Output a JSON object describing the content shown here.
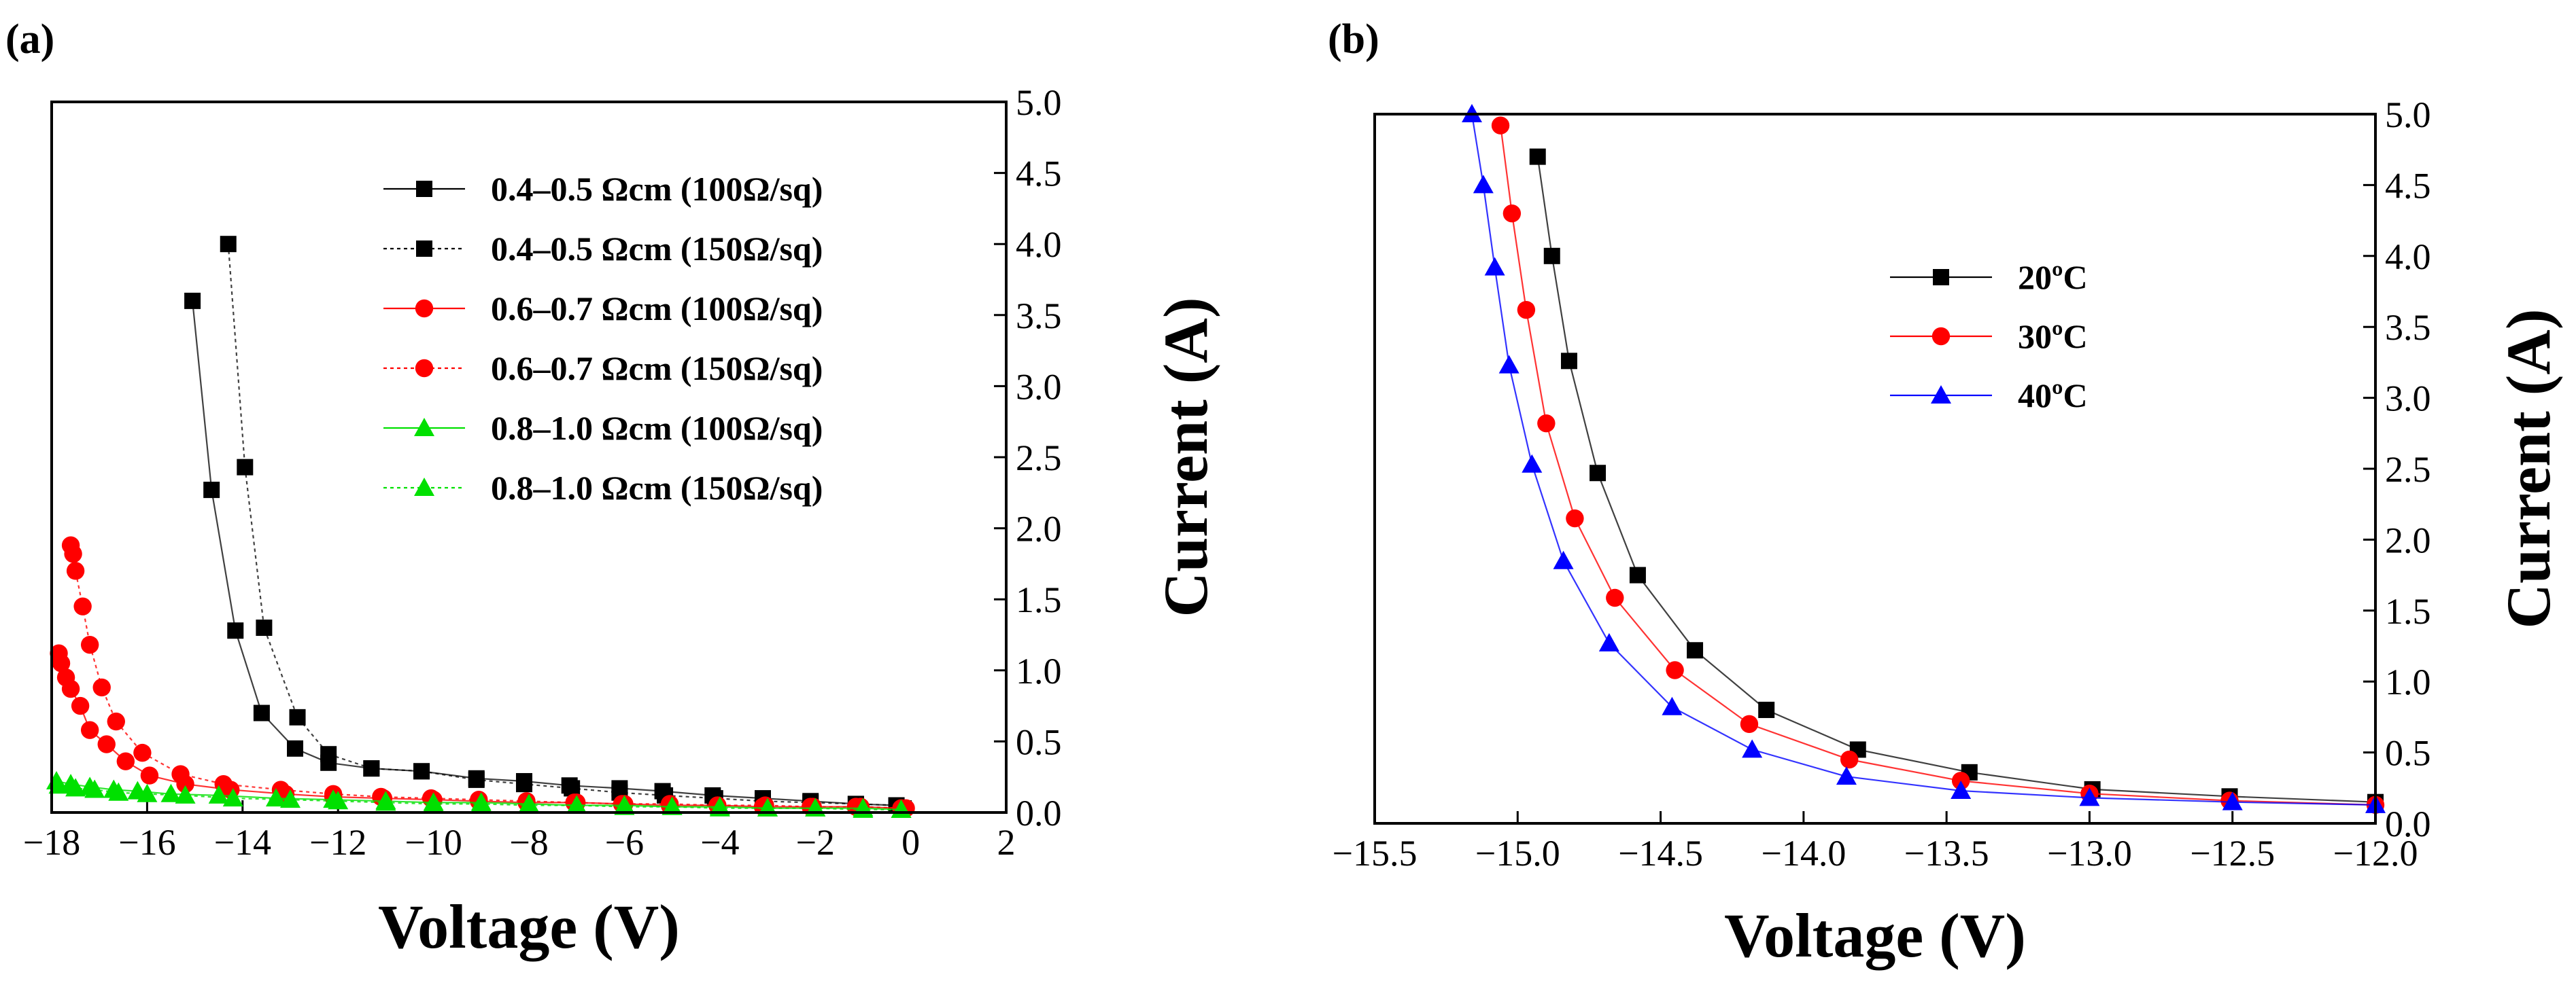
{
  "figure": {
    "panels": [
      "(a)",
      "(b)"
    ]
  },
  "colors": {
    "black": "#000000",
    "red": "#ff0000",
    "green": "#00e000",
    "blue": "#0000ff"
  },
  "chart_data": [
    {
      "type": "line",
      "panel_label": "(a)",
      "xlabel": "Voltage (V)",
      "ylabel": "Current (A)",
      "xlim": [
        -18,
        2
      ],
      "ylim": [
        0,
        5
      ],
      "xticks": [
        -18,
        -16,
        -14,
        -12,
        -10,
        -8,
        -6,
        -4,
        -2,
        0,
        2
      ],
      "xtick_labels": [
        "−18",
        "−16",
        "−14",
        "−12",
        "−10",
        "−8",
        "−6",
        "−4",
        "−2",
        "0",
        "2"
      ],
      "yticks": [
        0,
        0.5,
        1,
        1.5,
        2,
        2.5,
        3,
        3.5,
        4,
        4.5,
        5
      ],
      "ytick_labels": [
        "0.0",
        "0.5",
        "1.0",
        "1.5",
        "2.0",
        "2.5",
        "3.0",
        "3.5",
        "4.0",
        "4.5",
        "5.0"
      ],
      "y_axis_side": "right",
      "legend_position": "top-right",
      "series": [
        {
          "name": "0.4–0.5 Ωcm (100Ω/sq)",
          "color": "#000000",
          "marker": "square",
          "dash": "solid",
          "x": [
            -15.05,
            -14.65,
            -14.15,
            -13.6,
            -12.9,
            -12.2,
            -11.3,
            -10.25,
            -9.1,
            -8.1,
            -7.15,
            -6.1,
            -5.2,
            -4.15,
            -3.1,
            -2.1,
            -1.15,
            -0.3
          ],
          "y": [
            3.6,
            2.27,
            1.28,
            0.7,
            0.45,
            0.35,
            0.31,
            0.29,
            0.24,
            0.22,
            0.19,
            0.17,
            0.15,
            0.12,
            0.1,
            0.08,
            0.06,
            0.05
          ]
        },
        {
          "name": "0.4–0.5 Ωcm (150Ω/sq)",
          "color": "#000000",
          "marker": "square",
          "dash": "dotted",
          "x": [
            -14.3,
            -13.95,
            -13.55,
            -12.85,
            -12.2,
            -11.3,
            -10.25,
            -9.1,
            -8.1,
            -7.1,
            -6.1,
            -5.15,
            -4.1,
            -3.1,
            -2.1,
            -1.15,
            -0.3
          ],
          "y": [
            4.0,
            2.43,
            1.3,
            0.67,
            0.41,
            0.31,
            0.29,
            0.23,
            0.2,
            0.17,
            0.14,
            0.12,
            0.1,
            0.08,
            0.07,
            0.06,
            0.05
          ]
        },
        {
          "name": "0.6–0.7 Ωcm (100Ω/sq)",
          "color": "#ff0000",
          "marker": "circle",
          "dash": "solid",
          "x": [
            -17.85,
            -17.8,
            -17.7,
            -17.6,
            -17.4,
            -17.2,
            -16.85,
            -16.45,
            -15.95,
            -15.2,
            -14.25,
            -13.1,
            -12.1,
            -11.05,
            -10.0,
            -9.05,
            -8.05,
            -7.0,
            -6.0,
            -5.05,
            -4.05,
            -3.1,
            -2.1,
            -1.15,
            -0.2
          ],
          "y": [
            1.12,
            1.05,
            0.95,
            0.87,
            0.75,
            0.58,
            0.48,
            0.36,
            0.26,
            0.2,
            0.16,
            0.13,
            0.11,
            0.1,
            0.09,
            0.08,
            0.07,
            0.07,
            0.06,
            0.05,
            0.05,
            0.04,
            0.04,
            0.04,
            0.03
          ]
        },
        {
          "name": "0.6–0.7 Ωcm (150Ω/sq)",
          "color": "#ff0000",
          "marker": "circle",
          "dash": "dotted",
          "x": [
            -17.6,
            -17.55,
            -17.5,
            -17.35,
            -17.2,
            -16.95,
            -16.65,
            -16.1,
            -15.3,
            -14.4,
            -13.2,
            -12.1,
            -11.1,
            -10.05,
            -9.05,
            -8.05,
            -7.05,
            -6.05,
            -5.05,
            -4.05,
            -3.05,
            -2.05,
            -1.05,
            -0.1
          ],
          "y": [
            1.88,
            1.82,
            1.7,
            1.45,
            1.18,
            0.88,
            0.64,
            0.42,
            0.27,
            0.2,
            0.16,
            0.13,
            0.11,
            0.1,
            0.09,
            0.08,
            0.07,
            0.06,
            0.06,
            0.05,
            0.05,
            0.04,
            0.04,
            0.03
          ]
        },
        {
          "name": "0.8–1.0 Ωcm (100Ω/sq)",
          "color": "#00e000",
          "marker": "triangle",
          "dash": "solid",
          "x": [
            -17.9,
            -17.6,
            -17.2,
            -16.7,
            -16.2,
            -15.5,
            -14.5,
            -13.3,
            -12.1,
            -11.0,
            -10.0,
            -9.0,
            -8.0,
            -7.0,
            -6.0,
            -5.0,
            -4.0,
            -3.0,
            -2.0,
            -1.0,
            -0.2
          ],
          "y": [
            0.22,
            0.2,
            0.18,
            0.16,
            0.15,
            0.13,
            0.12,
            0.1,
            0.09,
            0.08,
            0.07,
            0.07,
            0.06,
            0.05,
            0.05,
            0.04,
            0.04,
            0.03,
            0.03,
            0.03,
            0.02
          ]
        },
        {
          "name": "0.8–1.0 Ωcm (150Ω/sq)",
          "color": "#00e000",
          "marker": "triangle",
          "dash": "dotted",
          "x": [
            -17.85,
            -17.5,
            -17.1,
            -16.6,
            -16.0,
            -15.2,
            -14.2,
            -13.0,
            -12.0,
            -11.0,
            -10.0,
            -9.0,
            -8.0,
            -7.0,
            -6.0,
            -5.0,
            -4.0,
            -3.0,
            -2.0,
            -1.0,
            -0.2
          ],
          "y": [
            0.19,
            0.17,
            0.16,
            0.14,
            0.13,
            0.12,
            0.1,
            0.09,
            0.08,
            0.07,
            0.06,
            0.06,
            0.05,
            0.05,
            0.04,
            0.04,
            0.03,
            0.03,
            0.03,
            0.02,
            0.02
          ]
        }
      ]
    },
    {
      "type": "line",
      "panel_label": "(b)",
      "xlabel": "Voltage (V)",
      "ylabel": "Current (A)",
      "xlim": [
        -15.5,
        -12.0
      ],
      "ylim": [
        0,
        5
      ],
      "xticks": [
        -15.5,
        -15.0,
        -14.5,
        -14.0,
        -13.5,
        -13.0,
        -12.5,
        -12.0
      ],
      "xtick_labels": [
        "−15.5",
        "−15.0",
        "−14.5",
        "−14.0",
        "−13.5",
        "−13.0",
        "−12.5",
        "−12.0"
      ],
      "yticks": [
        0,
        0.5,
        1,
        1.5,
        2,
        2.5,
        3,
        3.5,
        4,
        4.5,
        5
      ],
      "ytick_labels": [
        "0.0",
        "0.5",
        "1.0",
        "1.5",
        "2.0",
        "2.5",
        "3.0",
        "3.5",
        "4.0",
        "4.5",
        "5.0"
      ],
      "y_axis_side": "right",
      "legend_position": "top-center",
      "series": [
        {
          "name": "20ºC",
          "color": "#000000",
          "marker": "square",
          "dash": "solid",
          "x": [
            -14.93,
            -14.88,
            -14.82,
            -14.72,
            -14.58,
            -14.38,
            -14.13,
            -13.81,
            -13.42,
            -12.99,
            -12.51,
            -12.0
          ],
          "y": [
            4.7,
            4.0,
            3.26,
            2.47,
            1.75,
            1.22,
            0.8,
            0.52,
            0.36,
            0.24,
            0.19,
            0.15
          ]
        },
        {
          "name": "30ºC",
          "color": "#ff0000",
          "marker": "circle",
          "dash": "solid",
          "x": [
            -15.06,
            -15.02,
            -14.97,
            -14.9,
            -14.8,
            -14.66,
            -14.45,
            -14.19,
            -13.84,
            -13.45,
            -13.0,
            -12.51,
            -12.0
          ],
          "y": [
            4.92,
            4.3,
            3.62,
            2.82,
            2.15,
            1.59,
            1.08,
            0.7,
            0.45,
            0.3,
            0.21,
            0.16,
            0.13
          ]
        },
        {
          "name": "40ºC",
          "color": "#0000ff",
          "marker": "triangle",
          "dash": "solid",
          "x": [
            -15.16,
            -15.12,
            -15.08,
            -15.03,
            -14.95,
            -14.84,
            -14.68,
            -14.46,
            -14.18,
            -13.85,
            -13.45,
            -13.0,
            -12.5,
            -12.0
          ],
          "y": [
            5.0,
            4.5,
            3.92,
            3.23,
            2.53,
            1.85,
            1.27,
            0.82,
            0.52,
            0.33,
            0.23,
            0.18,
            0.15,
            0.13
          ]
        }
      ]
    }
  ]
}
